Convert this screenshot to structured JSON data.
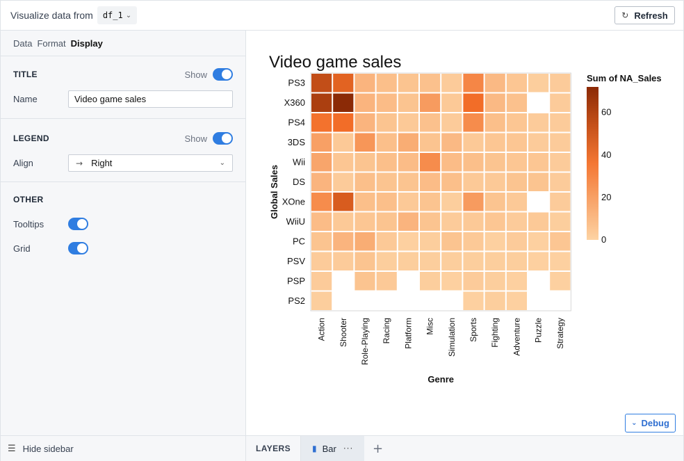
{
  "topbar": {
    "label": "Visualize data from",
    "dataframe": "df_1",
    "refresh_label": "Refresh"
  },
  "sidebar": {
    "tabs": [
      "Data",
      "Format",
      "Display"
    ],
    "active_tab": "Display",
    "title_section": {
      "heading": "TITLE",
      "show_label": "Show",
      "show": true,
      "name_label": "Name",
      "name_value": "Video game sales"
    },
    "legend_section": {
      "heading": "LEGEND",
      "show_label": "Show",
      "show": true,
      "align_label": "Align",
      "align_value": "Right"
    },
    "other_section": {
      "heading": "OTHER",
      "tooltips_label": "Tooltips",
      "tooltips": true,
      "grid_label": "Grid",
      "grid": true
    },
    "hide_label": "Hide sidebar"
  },
  "bottom": {
    "layers_label": "LAYERS",
    "layer_tab": "Bar"
  },
  "debug_label": "Debug",
  "colors": {
    "accent": "#2f7de1",
    "heat_low": "#fdd3a3",
    "heat_high": "#8b2a06"
  },
  "chart_data": {
    "type": "heatmap",
    "title": "Video game sales",
    "xlabel": "Genre",
    "ylabel": "Global Sales",
    "legend_title": "Sum of NA_Sales",
    "legend_ticks": [
      0,
      20,
      40,
      60
    ],
    "color_range": [
      0,
      72
    ],
    "x": [
      "Action",
      "Shooter",
      "Role-Playing",
      "Racing",
      "Platform",
      "Misc",
      "Simulation",
      "Sports",
      "Fighting",
      "Adventure",
      "Puzzle",
      "Strategy"
    ],
    "y": [
      "PS3",
      "X360",
      "PS4",
      "3DS",
      "Wii",
      "DS",
      "XOne",
      "WiiU",
      "PC",
      "PSV",
      "PSP",
      "PS2"
    ],
    "values": [
      [
        55,
        45,
        12,
        8,
        6,
        7,
        3,
        30,
        10,
        5,
        2,
        3
      ],
      [
        62,
        72,
        12,
        9,
        6,
        22,
        4,
        40,
        10,
        7,
        null,
        3
      ],
      [
        38,
        40,
        12,
        6,
        4,
        7,
        3,
        28,
        8,
        5,
        3,
        3
      ],
      [
        20,
        4,
        24,
        8,
        15,
        6,
        10,
        4,
        5,
        5,
        3,
        3
      ],
      [
        18,
        5,
        6,
        8,
        9,
        28,
        9,
        8,
        6,
        5,
        5,
        3
      ],
      [
        12,
        3,
        8,
        6,
        6,
        9,
        8,
        4,
        4,
        6,
        6,
        3
      ],
      [
        28,
        48,
        8,
        8,
        4,
        6,
        2,
        22,
        6,
        4,
        null,
        3
      ],
      [
        9,
        4,
        5,
        6,
        12,
        6,
        3,
        4,
        5,
        3,
        4,
        2
      ],
      [
        6,
        12,
        15,
        4,
        1,
        2,
        6,
        4,
        1,
        3,
        1,
        5
      ],
      [
        3,
        3,
        6,
        2,
        2,
        2,
        2,
        2,
        2,
        2,
        1,
        1
      ],
      [
        3,
        null,
        6,
        4,
        null,
        2,
        1,
        3,
        2,
        1,
        null,
        1
      ],
      [
        2,
        null,
        null,
        null,
        null,
        null,
        null,
        1,
        2,
        1,
        null,
        null
      ]
    ]
  }
}
